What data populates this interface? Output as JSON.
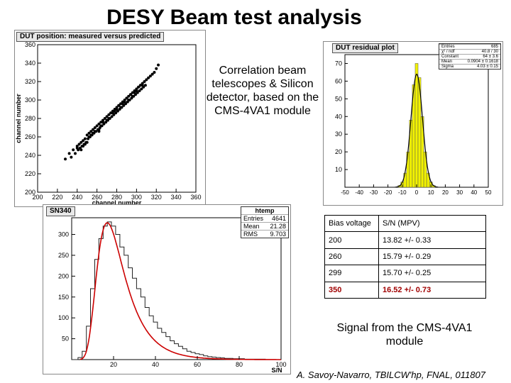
{
  "title": "DESY Beam test analysis",
  "correlation_description": "Correlation beam telescopes & Silicon detector, based on the CMS-4VA1 module",
  "signal_description": "Signal from the CMS-4VA1 module",
  "footer": "A. Savoy-Navarro, TBILCW'hp, FNAL, 011807",
  "table": {
    "headers": [
      "Bias voltage",
      "S/N (MPV)"
    ],
    "rows": [
      {
        "bias": "200",
        "sn": "13.82 +/- 0.33"
      },
      {
        "bias": "260",
        "sn": "15.79 +/- 0.29"
      },
      {
        "bias": "299",
        "sn": "15.70 +/- 0.25"
      },
      {
        "bias": "350",
        "sn": "16.52 +/- 0.73",
        "highlight": true
      }
    ]
  },
  "chart_data": [
    {
      "type": "scatter",
      "title": "DUT position: measured versus predicted",
      "xlabel": "channel number",
      "ylabel": "channel number",
      "xlim": [
        200,
        360
      ],
      "ylim": [
        200,
        360
      ],
      "xticks": [
        200,
        220,
        240,
        260,
        280,
        300,
        320,
        340,
        360
      ],
      "yticks": [
        200,
        220,
        240,
        260,
        280,
        300,
        320,
        340,
        360
      ],
      "x": [
        228,
        232,
        234,
        236,
        238,
        240,
        241,
        242,
        243,
        244,
        245,
        246,
        247,
        248,
        249,
        250,
        251,
        252,
        253,
        254,
        255,
        256,
        257,
        258,
        259,
        260,
        261,
        262,
        263,
        264,
        265,
        266,
        267,
        268,
        269,
        270,
        271,
        272,
        273,
        274,
        275,
        276,
        277,
        278,
        279,
        280,
        281,
        282,
        283,
        284,
        285,
        286,
        287,
        288,
        289,
        290,
        291,
        292,
        293,
        294,
        295,
        296,
        297,
        298,
        299,
        300,
        301,
        302,
        303,
        304,
        305,
        306,
        307,
        308,
        309,
        310,
        312,
        314,
        316,
        318,
        320,
        322,
        244,
        248,
        252,
        256,
        262,
        266,
        270,
        274,
        278,
        282,
        286,
        290,
        294,
        298,
        302,
        306,
        250,
        258,
        264,
        272,
        280,
        288,
        296,
        304,
        240,
        246,
        254,
        262,
        276,
        284,
        292,
        300
      ],
      "y": [
        236,
        242,
        238,
        246,
        242,
        250,
        246,
        252,
        248,
        254,
        250,
        256,
        252,
        258,
        254,
        262,
        258,
        264,
        260,
        266,
        262,
        268,
        264,
        270,
        266,
        272,
        268,
        274,
        270,
        276,
        272,
        278,
        274,
        280,
        276,
        282,
        278,
        284,
        280,
        286,
        282,
        288,
        284,
        290,
        286,
        292,
        288,
        294,
        290,
        296,
        292,
        298,
        294,
        300,
        296,
        302,
        298,
        304,
        300,
        306,
        302,
        308,
        304,
        310,
        306,
        312,
        308,
        314,
        310,
        316,
        312,
        318,
        314,
        320,
        316,
        322,
        324,
        326,
        328,
        330,
        334,
        338,
        246,
        252,
        260,
        264,
        268,
        276,
        278,
        286,
        288,
        294,
        296,
        302,
        306,
        308,
        314,
        316,
        254,
        266,
        272,
        280,
        290,
        298,
        304,
        316,
        248,
        250,
        262,
        266,
        286,
        292,
        300,
        310
      ]
    },
    {
      "type": "histogram",
      "title": "DUT residual plot",
      "xlim": [
        -50,
        50
      ],
      "ylim": [
        0,
        75
      ],
      "xticks": [
        -50,
        -40,
        -30,
        -20,
        -10,
        0,
        10,
        20,
        30,
        40,
        50
      ],
      "yticks": [
        10,
        20,
        30,
        40,
        50,
        60,
        70
      ],
      "bins": [
        -12,
        -10,
        -8,
        -6,
        -4,
        -2,
        0,
        2,
        4,
        6,
        8,
        10,
        12
      ],
      "values": [
        1,
        3,
        8,
        20,
        38,
        58,
        70,
        62,
        40,
        20,
        8,
        3,
        1
      ],
      "fit": "gaussian",
      "stats": [
        {
          "label": "Entries",
          "value": "685"
        },
        {
          "label": "χ² / ndf",
          "value": "40.8 / 30"
        },
        {
          "label": "Constant",
          "value": "64 ± 3.6"
        },
        {
          "label": "Mean",
          "value": "0.0904 ± 0.1618"
        },
        {
          "label": "Sigma",
          "value": "4.03 ± 0.15"
        }
      ]
    },
    {
      "type": "histogram",
      "title": "SN340",
      "xlabel": "S/N",
      "xlim": [
        0,
        100
      ],
      "ylim": [
        0,
        340
      ],
      "xticks": [
        20,
        40,
        60,
        80,
        100
      ],
      "yticks": [
        50,
        100,
        150,
        200,
        250,
        300
      ],
      "bins": [
        2,
        4,
        6,
        8,
        10,
        12,
        14,
        16,
        18,
        20,
        22,
        24,
        26,
        28,
        30,
        32,
        34,
        36,
        38,
        40,
        42,
        44,
        46,
        48,
        50,
        52,
        54,
        56,
        58,
        60,
        62,
        64,
        66,
        68,
        70,
        72,
        74,
        76,
        78,
        80,
        85,
        90,
        95
      ],
      "values": [
        0,
        5,
        20,
        80,
        170,
        240,
        290,
        320,
        330,
        320,
        300,
        270,
        250,
        220,
        195,
        170,
        150,
        125,
        105,
        90,
        75,
        65,
        55,
        45,
        38,
        32,
        26,
        20,
        17,
        14,
        12,
        9,
        7,
        6,
        5,
        4,
        3,
        3,
        2,
        2,
        1,
        1,
        0
      ],
      "fit": "landau",
      "stats_title": "htemp",
      "stats": [
        {
          "label": "Entries",
          "value": "4641"
        },
        {
          "label": "Mean",
          "value": "21.28"
        },
        {
          "label": "RMS",
          "value": "9.703"
        }
      ]
    }
  ]
}
